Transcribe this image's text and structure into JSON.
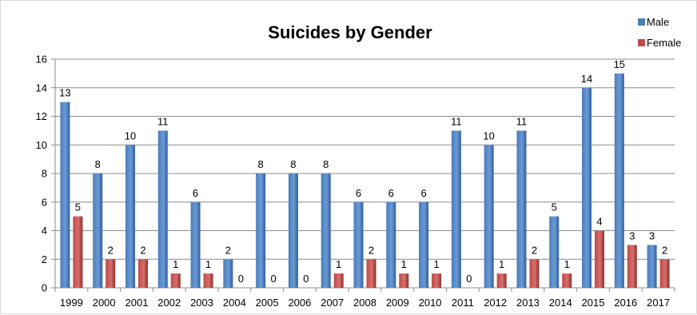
{
  "chart_data": {
    "type": "bar",
    "title": "Suicides by Gender",
    "xlabel": "",
    "ylabel": "",
    "categories": [
      "1999",
      "2000",
      "2001",
      "2002",
      "2003",
      "2004",
      "2005",
      "2006",
      "2007",
      "2008",
      "2009",
      "2010",
      "2011",
      "2012",
      "2013",
      "2014",
      "2015",
      "2016",
      "2017"
    ],
    "series": [
      {
        "name": "Male",
        "color": "#4a7ebb",
        "values": [
          13,
          8,
          10,
          11,
          6,
          2,
          8,
          8,
          8,
          6,
          6,
          6,
          11,
          10,
          11,
          5,
          14,
          15,
          3
        ]
      },
      {
        "name": "Female",
        "color": "#be4b48",
        "values": [
          5,
          2,
          2,
          1,
          1,
          0,
          0,
          0,
          1,
          2,
          1,
          1,
          0,
          1,
          2,
          1,
          4,
          3,
          2
        ]
      }
    ],
    "ylim": [
      0,
      16
    ],
    "yticks": [
      0,
      2,
      4,
      6,
      8,
      10,
      12,
      14,
      16
    ],
    "grid": true,
    "legend_position": "top-right",
    "data_labels": true
  }
}
